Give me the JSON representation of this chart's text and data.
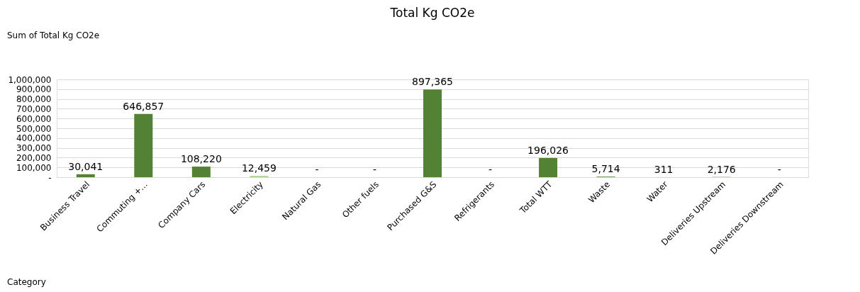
{
  "chart_data": {
    "type": "bar",
    "title": "Total Kg CO2e",
    "categories": [
      "Business Travel",
      "Commuting +...",
      "Company Cars",
      "Electricity",
      "Natural Gas",
      "Other fuels",
      "Purchased G&S",
      "Refrigerants",
      "Total WTT",
      "Waste",
      "Water",
      "Deliveries Upstream",
      "Deliveries Downstream"
    ],
    "values": [
      30041,
      646857,
      108220,
      12459,
      0,
      0,
      897365,
      0,
      196026,
      5714,
      311,
      2176,
      0
    ],
    "value_labels": [
      "30,041",
      "646,857",
      "108,220",
      "12,459",
      "-",
      "-",
      "897,365",
      "-",
      "196,026",
      "5,714",
      "311",
      "2,176",
      "-"
    ],
    "colors": [
      "#548235",
      "#548235",
      "#548235",
      "#a9d08e",
      "#548235",
      "#548235",
      "#548235",
      "#548235",
      "#548235",
      "#548235",
      "#548235",
      "#548235",
      "#548235"
    ],
    "ylim": [
      0,
      1000000
    ],
    "yticks": [
      {
        "value": 0,
        "label": "-"
      },
      {
        "value": 100000,
        "label": "100,000"
      },
      {
        "value": 200000,
        "label": "200,000"
      },
      {
        "value": 300000,
        "label": "300,000"
      },
      {
        "value": 400000,
        "label": "400,000"
      },
      {
        "value": 500000,
        "label": "500,000"
      },
      {
        "value": 600000,
        "label": "600,000"
      },
      {
        "value": 700000,
        "label": "700,000"
      },
      {
        "value": 800000,
        "label": "800,000"
      },
      {
        "value": 900000,
        "label": "900,000"
      },
      {
        "value": 1000000,
        "label": "1,000,000"
      }
    ],
    "grid": "y",
    "annotations": [
      "Sum of Total Kg CO2e",
      "Category"
    ]
  }
}
